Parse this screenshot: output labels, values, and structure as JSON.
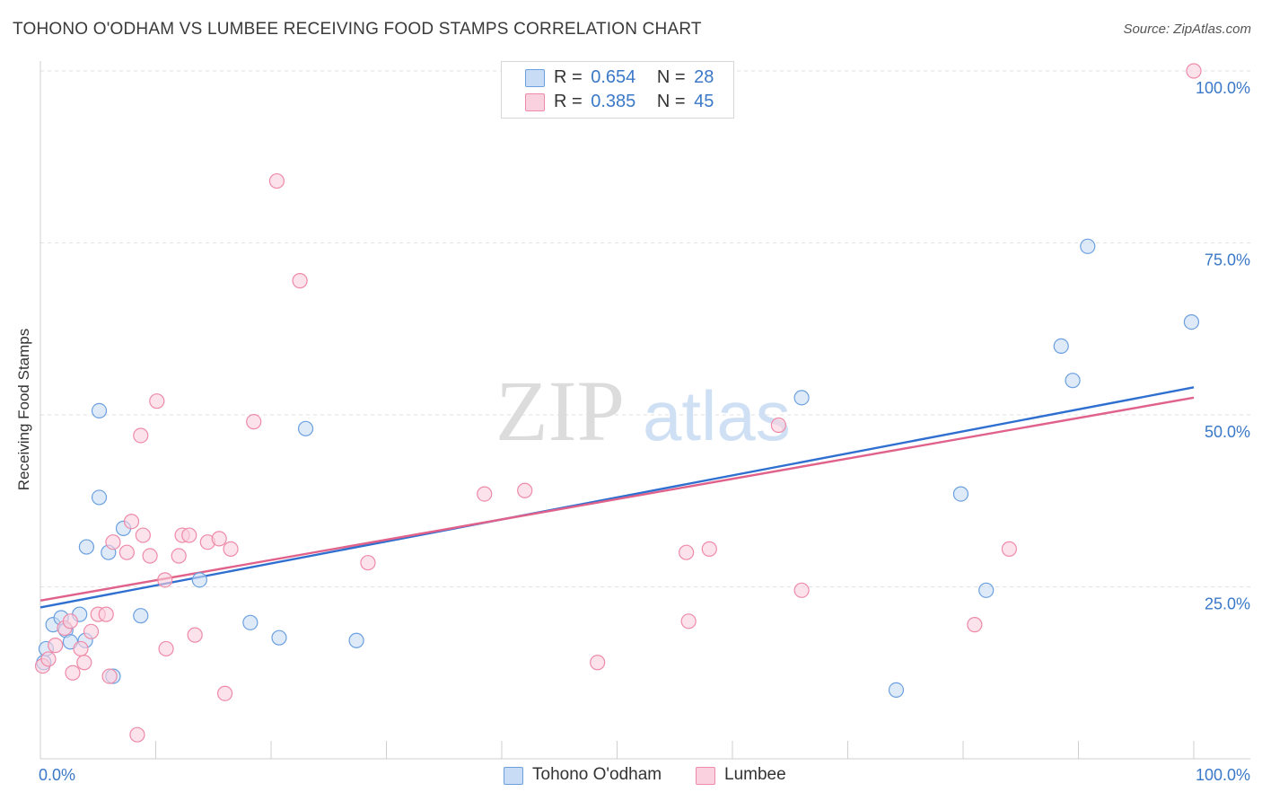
{
  "header": {
    "title": "TOHONO O'ODHAM VS LUMBEE RECEIVING FOOD STAMPS CORRELATION CHART",
    "source": "Source: ZipAtlas.com"
  },
  "watermark": {
    "zip": "ZIP",
    "atlas": "atlas"
  },
  "legend": {
    "rows": [
      {
        "r_label": "R =",
        "r_value": "0.654",
        "n_label": "N =",
        "n_value": "28",
        "color": "#a9c8f0"
      },
      {
        "r_label": "R =",
        "r_value": "0.385",
        "n_label": "N =",
        "n_value": "45",
        "color": "#f6b8cb"
      }
    ]
  },
  "bottom_legend": [
    {
      "label": "Tohono O'odham",
      "color": "#a9c8f0"
    },
    {
      "label": "Lumbee",
      "color": "#f6b8cb"
    }
  ],
  "chart_data": {
    "type": "scatter",
    "title": "TOHONO O'ODHAM VS LUMBEE RECEIVING FOOD STAMPS CORRELATION CHART",
    "xlabel": "",
    "ylabel": "Receiving Food Stamps",
    "xlim": [
      0,
      100
    ],
    "ylim": [
      0,
      100
    ],
    "x_tick_labels": [
      {
        "value": 0,
        "label": "0.0%"
      },
      {
        "value": 100,
        "label": "100.0%"
      }
    ],
    "y_tick_labels": [
      {
        "value": 25,
        "label": "25.0%"
      },
      {
        "value": 50,
        "label": "50.0%"
      },
      {
        "value": 75,
        "label": "75.0%"
      },
      {
        "value": 100,
        "label": "100.0%"
      }
    ],
    "grid": true,
    "legend_position": "top-center",
    "series": [
      {
        "name": "Tohono O'odham",
        "color": "#6aa0e0",
        "fill": "#c9dcf5",
        "trend": {
          "x": [
            0,
            100
          ],
          "y": [
            22.0,
            54.0
          ],
          "color": "#2f6fd0"
        },
        "points": [
          [
            0.3,
            14.0
          ],
          [
            0.5,
            16.0
          ],
          [
            1.1,
            19.5
          ],
          [
            1.8,
            20.5
          ],
          [
            2.2,
            18.7
          ],
          [
            2.6,
            17.0
          ],
          [
            3.4,
            21.0
          ],
          [
            3.9,
            17.2
          ],
          [
            4.0,
            30.8
          ],
          [
            5.1,
            38.0
          ],
          [
            5.9,
            30.0
          ],
          [
            6.3,
            12.0
          ],
          [
            7.2,
            33.5
          ],
          [
            5.1,
            50.6
          ],
          [
            8.7,
            20.8
          ],
          [
            13.8,
            26.0
          ],
          [
            18.2,
            19.8
          ],
          [
            20.7,
            17.6
          ],
          [
            23.0,
            48.0
          ],
          [
            27.4,
            17.2
          ],
          [
            66.0,
            52.5
          ],
          [
            74.2,
            10.0
          ],
          [
            79.8,
            38.5
          ],
          [
            82.0,
            24.5
          ],
          [
            88.5,
            60.0
          ],
          [
            89.5,
            55.0
          ],
          [
            90.8,
            74.5
          ],
          [
            99.8,
            63.5
          ]
        ]
      },
      {
        "name": "Lumbee",
        "color": "#ee8aa8",
        "fill": "#fad1de",
        "trend": {
          "x": [
            0,
            100
          ],
          "y": [
            23.0,
            52.5
          ],
          "color": "#e0628a"
        },
        "points": [
          [
            0.2,
            13.5
          ],
          [
            0.7,
            14.5
          ],
          [
            1.3,
            16.5
          ],
          [
            2.1,
            19.0
          ],
          [
            2.6,
            20.0
          ],
          [
            2.8,
            12.5
          ],
          [
            3.5,
            16.0
          ],
          [
            3.8,
            14.0
          ],
          [
            4.4,
            18.5
          ],
          [
            5.0,
            21.0
          ],
          [
            5.7,
            21.0
          ],
          [
            6.0,
            12.0
          ],
          [
            6.3,
            31.5
          ],
          [
            7.5,
            30.0
          ],
          [
            7.9,
            34.5
          ],
          [
            8.4,
            3.5
          ],
          [
            8.7,
            47.0
          ],
          [
            8.9,
            32.5
          ],
          [
            9.5,
            29.5
          ],
          [
            10.1,
            52.0
          ],
          [
            10.8,
            26.0
          ],
          [
            10.9,
            16.0
          ],
          [
            12.0,
            29.5
          ],
          [
            12.3,
            32.5
          ],
          [
            12.9,
            32.5
          ],
          [
            13.4,
            18.0
          ],
          [
            14.5,
            31.5
          ],
          [
            15.5,
            32.0
          ],
          [
            16.0,
            9.5
          ],
          [
            16.5,
            30.5
          ],
          [
            18.5,
            49.0
          ],
          [
            20.5,
            84.0
          ],
          [
            22.5,
            69.5
          ],
          [
            28.4,
            28.5
          ],
          [
            38.5,
            38.5
          ],
          [
            42.0,
            39.0
          ],
          [
            48.3,
            14.0
          ],
          [
            56.0,
            30.0
          ],
          [
            56.2,
            20.0
          ],
          [
            58.0,
            30.5
          ],
          [
            64.0,
            48.5
          ],
          [
            66.0,
            24.5
          ],
          [
            81.0,
            19.5
          ],
          [
            84.0,
            30.5
          ],
          [
            100.0,
            100.0
          ]
        ]
      }
    ]
  }
}
